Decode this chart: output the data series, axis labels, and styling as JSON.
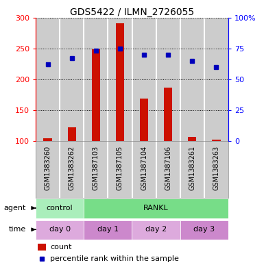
{
  "title": "GDS5422 / ILMN_2726055",
  "samples": [
    "GSM1383260",
    "GSM1383262",
    "GSM1387103",
    "GSM1387105",
    "GSM1387104",
    "GSM1387106",
    "GSM1383261",
    "GSM1383263"
  ],
  "counts": [
    105,
    123,
    249,
    291,
    169,
    187,
    107,
    103
  ],
  "percentiles": [
    62,
    67,
    73,
    75,
    70,
    70,
    65,
    60
  ],
  "ymin": 100,
  "ymax": 300,
  "yticks_left": [
    100,
    150,
    200,
    250,
    300
  ],
  "yticks_right": [
    0,
    25,
    50,
    75,
    100
  ],
  "bar_color": "#cc1100",
  "dot_color": "#0000bb",
  "agent_groups": [
    {
      "label": "control",
      "start": 0,
      "end": 2,
      "color": "#aaeebb"
    },
    {
      "label": "RANKL",
      "start": 2,
      "end": 8,
      "color": "#77dd88"
    }
  ],
  "time_groups": [
    {
      "label": "day 0",
      "start": 0,
      "end": 2,
      "color": "#ddaadd"
    },
    {
      "label": "day 1",
      "start": 2,
      "end": 4,
      "color": "#cc88cc"
    },
    {
      "label": "day 2",
      "start": 4,
      "end": 6,
      "color": "#ddaadd"
    },
    {
      "label": "day 3",
      "start": 6,
      "end": 8,
      "color": "#cc88cc"
    }
  ],
  "bg_color": "#ffffff",
  "sample_bg": "#cccccc",
  "cell_border": "#ffffff"
}
